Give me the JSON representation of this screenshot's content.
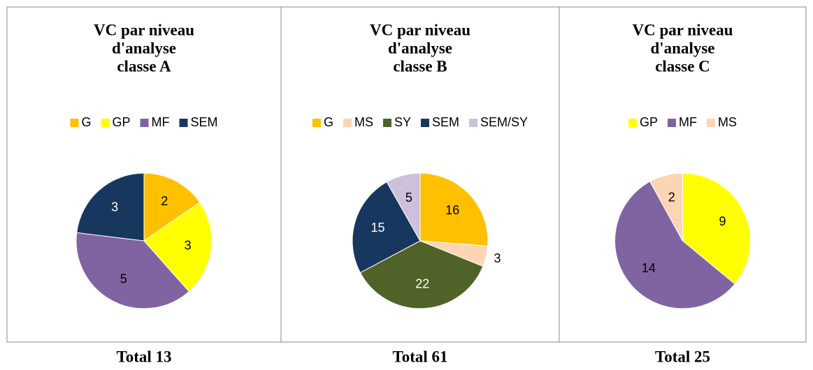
{
  "chart_data": [
    {
      "type": "pie",
      "title": [
        "VC par niveau",
        "d'analyse",
        "classe A"
      ],
      "total_label": "Total 13",
      "categories": [
        "G",
        "GP",
        "MF",
        "SEM"
      ],
      "values": [
        2,
        3,
        5,
        3
      ],
      "colors": [
        "#ffc000",
        "#ffff00",
        "#8064a2",
        "#17375e"
      ]
    },
    {
      "type": "pie",
      "title": [
        "VC par niveau",
        "d'analyse",
        "classe B"
      ],
      "total_label": "Total 61",
      "categories": [
        "G",
        "MS",
        "SY",
        "SEM",
        "SEM/SY"
      ],
      "values": [
        16,
        3,
        22,
        15,
        5
      ],
      "colors": [
        "#ffc000",
        "#fcd5b5",
        "#4f6228",
        "#17375e",
        "#ccc0da"
      ]
    },
    {
      "type": "pie",
      "title": [
        "VC par niveau",
        "d'analyse",
        "classe C"
      ],
      "total_label": "Total 25",
      "categories": [
        "GP",
        "MF",
        "MS"
      ],
      "values": [
        9,
        14,
        2
      ],
      "colors": [
        "#ffff00",
        "#8064a2",
        "#fcd5b5"
      ]
    }
  ]
}
